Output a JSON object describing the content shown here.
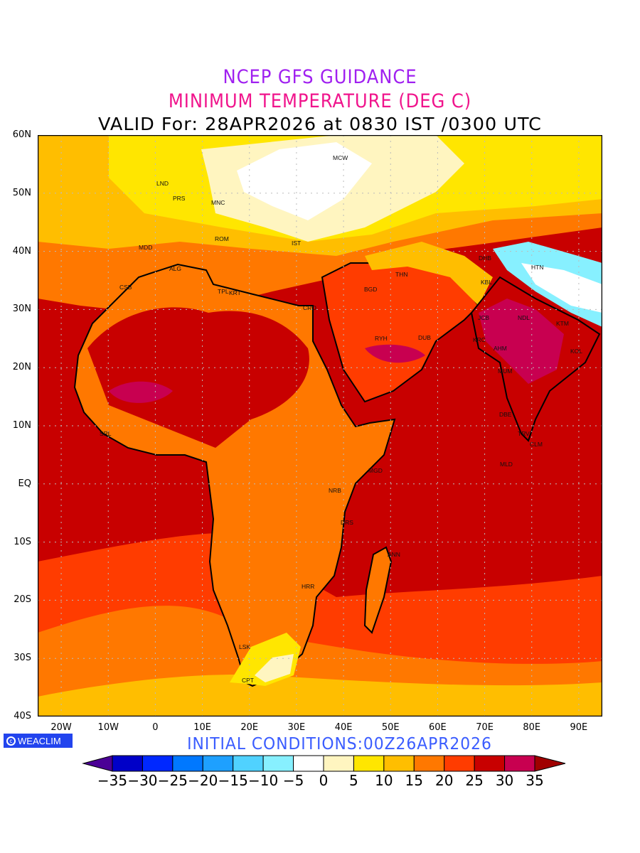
{
  "header": {
    "line1": "NCEP GFS GUIDANCE",
    "line2": "MINIMUM TEMPERATURE (DEG C)",
    "line3": "VALID For: 28APR2026 at 0830 IST /0300 UTC"
  },
  "footer": {
    "logo_text": "WEACLIM",
    "logo_icon": "copyright-icon",
    "initial_conditions": "INITIAL CONDITIONS:00Z26APR2026"
  },
  "axes": {
    "lat_labels": [
      "60N",
      "50N",
      "40N",
      "30N",
      "20N",
      "10N",
      "EQ",
      "10S",
      "20S",
      "30S",
      "40S"
    ],
    "lon_labels": [
      "20W",
      "10W",
      "0",
      "10E",
      "20E",
      "30E",
      "40E",
      "50E",
      "60E",
      "70E",
      "80E",
      "90E"
    ],
    "lat_range": [
      -40,
      60
    ],
    "lon_range": [
      -25,
      95
    ]
  },
  "colorbar": {
    "labels": [
      "−35",
      "−30",
      "−25",
      "−20",
      "−15",
      "−10",
      "−5",
      "0",
      "5",
      "10",
      "15",
      "20",
      "25",
      "30",
      "35"
    ],
    "under_color": "#4b0096",
    "over_color": "#a00000",
    "colors": [
      "#0000c8",
      "#0028ff",
      "#0078ff",
      "#1ea0ff",
      "#50d2ff",
      "#87f0ff",
      "#ffffff",
      "#fff5c0",
      "#ffe600",
      "#ffbe00",
      "#ff7800",
      "#ff3c00",
      "#c80000",
      "#c80050"
    ]
  },
  "cities": [
    "MCW",
    "LND",
    "PRS",
    "MNC",
    "ROM",
    "MDD",
    "IST",
    "ALG",
    "CSB",
    "TPL",
    "KRT",
    "CRO",
    "BGD",
    "THN",
    "DHB",
    "HTN",
    "KBL",
    "JCB",
    "NDL",
    "RYH",
    "DUB",
    "KRC",
    "AHM",
    "MUM",
    "DBE",
    "TRV",
    "CLM",
    "KTM",
    "KOL",
    "MLD",
    "MGD",
    "NRB",
    "DRS",
    "ANN",
    "HRR",
    "LSK",
    "CPT",
    "SRL"
  ]
}
